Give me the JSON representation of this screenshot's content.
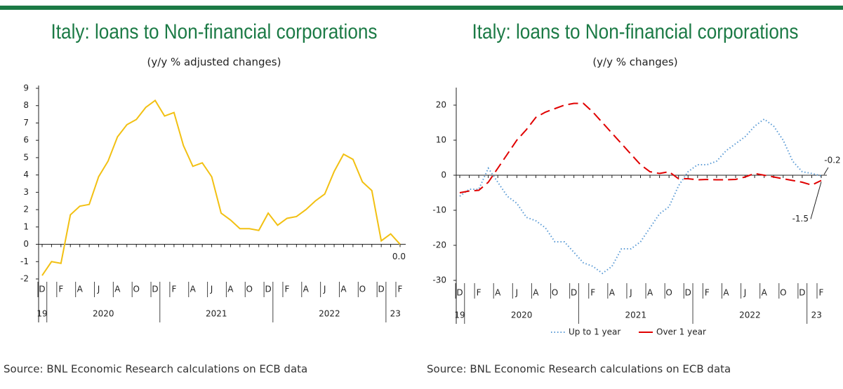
{
  "chart_data": [
    {
      "type": "line",
      "title": "Italy: loans to Non-financial corporations",
      "subtitle": "(y/y % adjusted changes)",
      "categories": [
        "D",
        null,
        "F",
        null,
        "A",
        null,
        "J",
        null,
        "A",
        null,
        "O",
        null,
        "D",
        null,
        "F",
        null,
        "A",
        null,
        "J",
        null,
        "A",
        null,
        "O",
        null,
        "D",
        null,
        "F",
        null,
        "A",
        null,
        "J",
        null,
        "A",
        null,
        "O",
        null,
        "D",
        null,
        "F"
      ],
      "year_labels": [
        "19",
        "2020",
        "2021",
        "2022",
        "23"
      ],
      "values": [
        -1.8,
        -1.0,
        -1.1,
        1.7,
        2.2,
        2.3,
        3.9,
        4.8,
        6.2,
        6.9,
        7.2,
        7.9,
        8.3,
        7.4,
        7.6,
        5.7,
        4.5,
        4.7,
        3.9,
        1.8,
        1.4,
        0.9,
        0.9,
        0.8,
        1.8,
        1.1,
        1.5,
        1.6,
        2.0,
        2.5,
        2.9,
        4.2,
        5.2,
        4.9,
        3.6,
        3.1,
        0.2,
        0.6,
        0.0
      ],
      "value_labels": [
        null,
        null,
        null,
        null,
        null,
        null,
        null,
        null,
        null,
        null,
        null,
        null,
        null,
        null,
        null,
        null,
        null,
        null,
        null,
        null,
        null,
        null,
        null,
        null,
        null,
        null,
        null,
        null,
        null,
        null,
        null,
        null,
        null,
        null,
        null,
        null,
        null,
        null,
        "0.0"
      ],
      "color": "#f2c012",
      "ylim": [
        -2,
        9
      ],
      "yticks": [
        -2,
        -1,
        0,
        1,
        2,
        3,
        4,
        5,
        6,
        7,
        8,
        9
      ],
      "source": "Source: BNL Economic Research calculations on ECB data"
    },
    {
      "type": "line",
      "title": "Italy: loans to Non-financial corporations",
      "subtitle": "(y/y % changes)",
      "categories": [
        "D",
        null,
        "F",
        null,
        "A",
        null,
        "J",
        null,
        "A",
        null,
        "O",
        null,
        "D",
        null,
        "F",
        null,
        "A",
        null,
        "J",
        null,
        "A",
        null,
        "O",
        null,
        "D",
        null,
        "F",
        null,
        "A",
        null,
        "J",
        null,
        "A",
        null,
        "O",
        null,
        "D",
        null,
        "F"
      ],
      "year_labels": [
        "19",
        "2020",
        "2021",
        "2022",
        "23"
      ],
      "series": [
        {
          "name": "Up to 1 year",
          "color": "#5b9bd5",
          "style": "dotted",
          "values": [
            -6,
            -4,
            -4,
            2,
            -2,
            -6,
            -8,
            -12,
            -13,
            -15,
            -19,
            -19,
            -22,
            -25,
            -26,
            -28,
            -26,
            -21,
            -21,
            -19,
            -15,
            -11,
            -9,
            -3,
            1,
            3,
            3,
            4,
            7,
            9,
            11,
            14,
            16,
            14,
            10,
            4,
            1,
            0.5,
            -0.2
          ]
        },
        {
          "name": "Over 1 year",
          "color": "#e00000",
          "style": "dashed",
          "values": [
            -5,
            -4.5,
            -4.3,
            -2,
            2,
            6,
            10,
            13,
            16.5,
            18,
            19,
            20,
            20.5,
            20.5,
            18,
            15,
            12,
            9,
            6,
            3,
            1,
            0.5,
            1,
            -1,
            -1,
            -1.3,
            -1.2,
            -1.3,
            -1.3,
            -1.2,
            -0.5,
            0.5,
            0,
            -0.5,
            -1,
            -1.5,
            -2,
            -2.8,
            -1.5
          ]
        }
      ],
      "ylim": [
        -30,
        24
      ],
      "yticks": [
        -30,
        -20,
        -10,
        0,
        10,
        20
      ],
      "legend": "bottom",
      "source": "Source: BNL Economic Research calculations on ECB data"
    }
  ]
}
